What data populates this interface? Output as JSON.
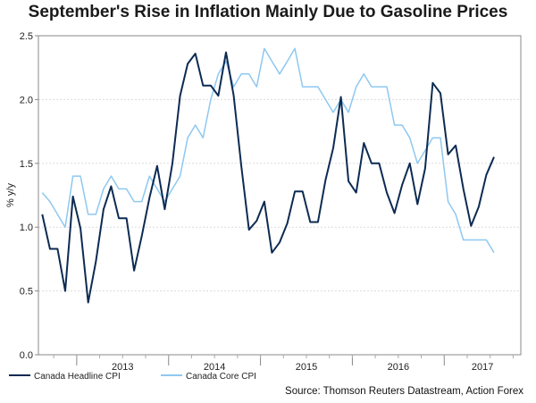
{
  "chart_data": {
    "type": "line",
    "title": "September's Rise in Inflation Mainly Due to Gasoline Prices",
    "ylabel": "% y/y",
    "xlabel": "",
    "ylim": [
      0.0,
      2.5
    ],
    "yticks": [
      "0.0",
      "0.5",
      "1.0",
      "1.5",
      "2.0",
      "2.5"
    ],
    "x_start": "2012-08",
    "x_end": "2017-10",
    "year_labels": [
      "2013",
      "2014",
      "2015",
      "2016",
      "2017"
    ],
    "colors": {
      "headline": "#0d2b52",
      "core": "#8ec8f0"
    },
    "series": [
      {
        "name": "Canada Headline CPI",
        "key": "headline",
        "start": "2012-08",
        "values": [
          1.1,
          0.83,
          0.83,
          0.5,
          1.24,
          0.99,
          0.41,
          0.73,
          1.14,
          1.32,
          1.07,
          1.07,
          0.66,
          0.93,
          1.23,
          1.48,
          1.14,
          1.5,
          2.03,
          2.28,
          2.36,
          2.11,
          2.11,
          2.03,
          2.37,
          2.03,
          1.48,
          0.98,
          1.05,
          1.2,
          0.8,
          0.88,
          1.03,
          1.28,
          1.28,
          1.04,
          1.04,
          1.37,
          1.62,
          2.02,
          1.36,
          1.27,
          1.66,
          1.5,
          1.5,
          1.27,
          1.11,
          1.33,
          1.5,
          1.18,
          1.46,
          2.13,
          2.05,
          1.57,
          1.64,
          1.3,
          1.01,
          1.16,
          1.41,
          1.55
        ]
      },
      {
        "name": "Canada Core CPI",
        "key": "core",
        "start": "2012-08",
        "values": [
          1.27,
          1.2,
          1.1,
          1.0,
          1.4,
          1.4,
          1.1,
          1.1,
          1.3,
          1.4,
          1.3,
          1.3,
          1.2,
          1.2,
          1.4,
          1.3,
          1.2,
          1.3,
          1.4,
          1.7,
          1.8,
          1.7,
          2.0,
          2.2,
          2.3,
          2.1,
          2.2,
          2.2,
          2.1,
          2.4,
          2.3,
          2.2,
          2.3,
          2.4,
          2.1,
          2.1,
          2.1,
          2.0,
          1.9,
          2.0,
          1.9,
          2.1,
          2.2,
          2.1,
          2.1,
          2.1,
          1.8,
          1.8,
          1.7,
          1.5,
          1.6,
          1.7,
          1.7,
          1.2,
          1.1,
          0.9,
          0.9,
          0.9,
          0.9,
          0.8
        ]
      }
    ],
    "source": "Source: Thomson Reuters Datastream, Action Forex"
  }
}
